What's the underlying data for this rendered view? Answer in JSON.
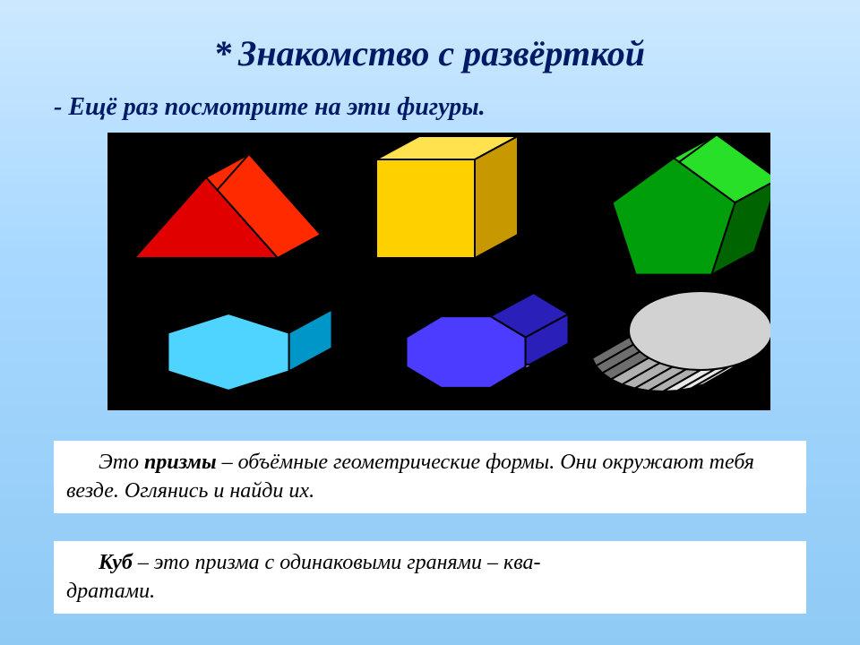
{
  "title": {
    "asterisk": "*",
    "text": "Знакомство с развёрткой"
  },
  "subtitle": "- Ещё раз посмотрите на эти фигуры.",
  "paragraph1": {
    "p1_pre": "Это ",
    "p1_bold": "призмы",
    "p1_dash": " – ",
    "p1_rest": "объёмные геометрические формы. Они окружают тебя везде. Оглянись и найди их."
  },
  "paragraph2": {
    "p2_bold": "Куб",
    "p2_dash": " – ",
    "p2_mid": "это призма с одинаковыми гранями – ква-",
    "p2_rest": "дратами."
  },
  "shapes": {
    "background": "#000000",
    "tri_prism": {
      "front": "#e10000",
      "top": "#ff2a00",
      "side": "#8a0000"
    },
    "cube": {
      "front": "#ffd000",
      "top": "#ffe24d",
      "side": "#c79800"
    },
    "pent_prism": {
      "front": "#009e0a",
      "top": "#28e028",
      "side": "#006400"
    },
    "hex_prism": {
      "front": "#4fd4ff",
      "top": "#a0ecff",
      "side": "#0096c8"
    },
    "oct_prism": {
      "front": "#4b3cff",
      "top": "#8a82ff",
      "side": "#2a1fb8"
    },
    "cylinder": {
      "light": "#e8e8e8",
      "mid": "#b0b0b0",
      "dark": "#6e6e6e",
      "top": "#d2d2d2"
    },
    "stroke": "#000000",
    "stroke_width": 2
  }
}
